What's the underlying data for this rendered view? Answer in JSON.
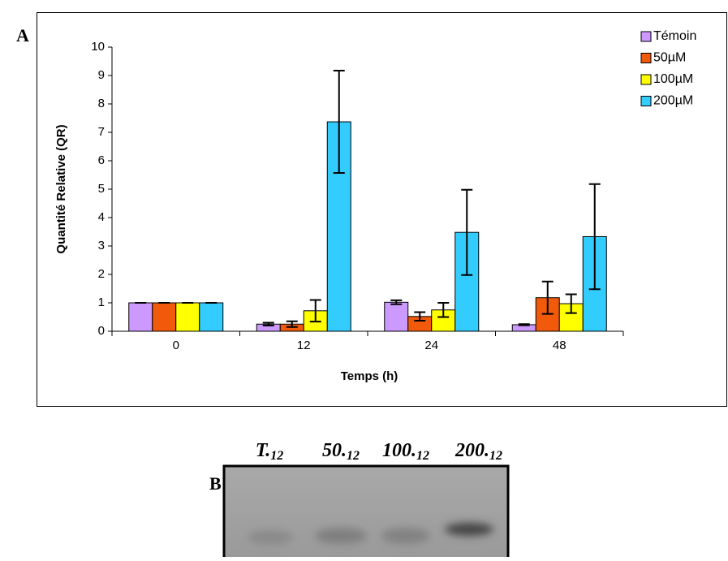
{
  "panel_a_label": "A",
  "chart_data": {
    "type": "bar",
    "xlabel": "Temps (h)",
    "ylabel": "Quantité Relative (QR)",
    "categories": [
      "0",
      "12",
      "24",
      "48"
    ],
    "series": [
      {
        "name": "Témoin",
        "color": "#cc99ff",
        "values": [
          1,
          0.25,
          1.02,
          0.23
        ],
        "errors": [
          0,
          0.05,
          0.07,
          0.02
        ]
      },
      {
        "name": "50µM",
        "color": "#f05a0a",
        "values": [
          1,
          0.25,
          0.52,
          1.18
        ],
        "errors": [
          0,
          0.1,
          0.15,
          0.57
        ]
      },
      {
        "name": "100µM",
        "color": "#ffff00",
        "values": [
          1,
          0.72,
          0.75,
          0.97
        ],
        "errors": [
          0,
          0.38,
          0.25,
          0.33
        ]
      },
      {
        "name": "200µM",
        "color": "#33ccff",
        "values": [
          1,
          7.37,
          3.48,
          3.33
        ],
        "errors": [
          0,
          1.8,
          1.5,
          1.85
        ]
      }
    ],
    "ylim": [
      0,
      10
    ],
    "yticks": [
      0,
      1,
      2,
      3,
      4,
      5,
      6,
      7,
      8,
      9,
      10
    ],
    "legend": "top-right"
  },
  "panel_b": {
    "label": "B",
    "lanes": [
      {
        "name": "T.",
        "sub": "12"
      },
      {
        "name": "50.",
        "sub": "12"
      },
      {
        "name": "100.",
        "sub": "12"
      },
      {
        "name": "200.",
        "sub": "12"
      }
    ]
  }
}
